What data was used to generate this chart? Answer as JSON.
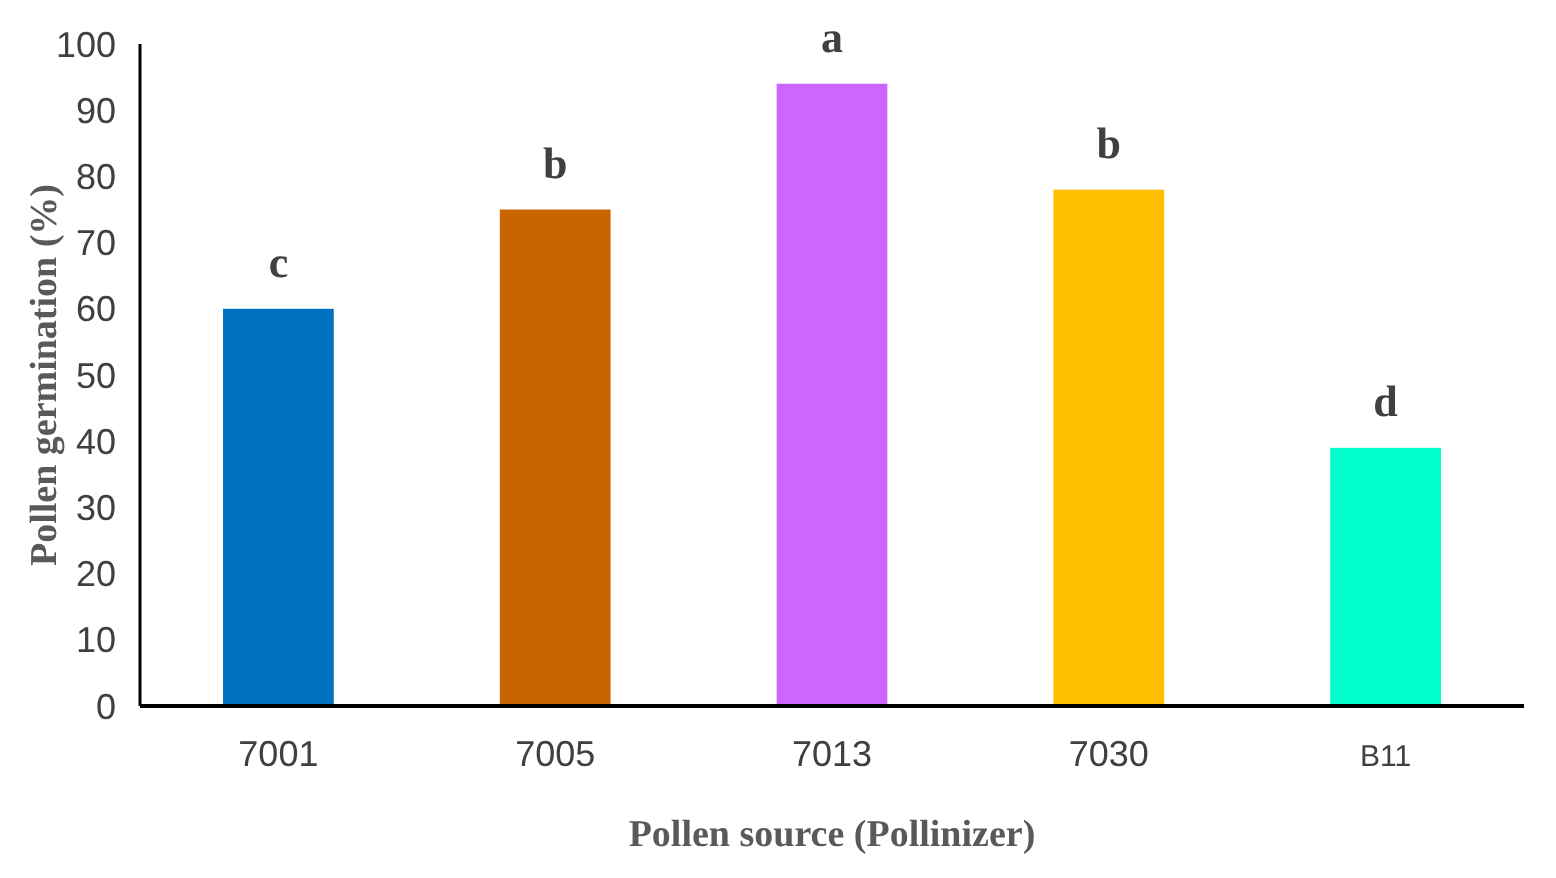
{
  "chart_data": {
    "type": "bar",
    "xlabel": "Pollen source (Pollinizer)",
    "ylabel": "Pollen germination (%)",
    "categories": [
      "7001",
      "7005",
      "7013",
      "7030",
      "B11"
    ],
    "values": [
      60,
      75,
      94,
      78,
      39
    ],
    "colors": [
      "#0070c0",
      "#c96500",
      "#cc66ff",
      "#ffc000",
      "#00ffcc"
    ],
    "ylim": [
      0,
      100
    ],
    "yticks": [
      0,
      10,
      20,
      30,
      40,
      50,
      60,
      70,
      80,
      90,
      100
    ],
    "grid": false,
    "annotations": [
      {
        "text": "c",
        "x": "7001",
        "y": 60
      },
      {
        "text": "b",
        "x": "7005",
        "y": 75
      },
      {
        "text": "a",
        "x": "7013",
        "y": 94
      },
      {
        "text": "b",
        "x": "7030",
        "y": 78
      },
      {
        "text": "d",
        "x": "B11",
        "y": 39
      }
    ]
  }
}
